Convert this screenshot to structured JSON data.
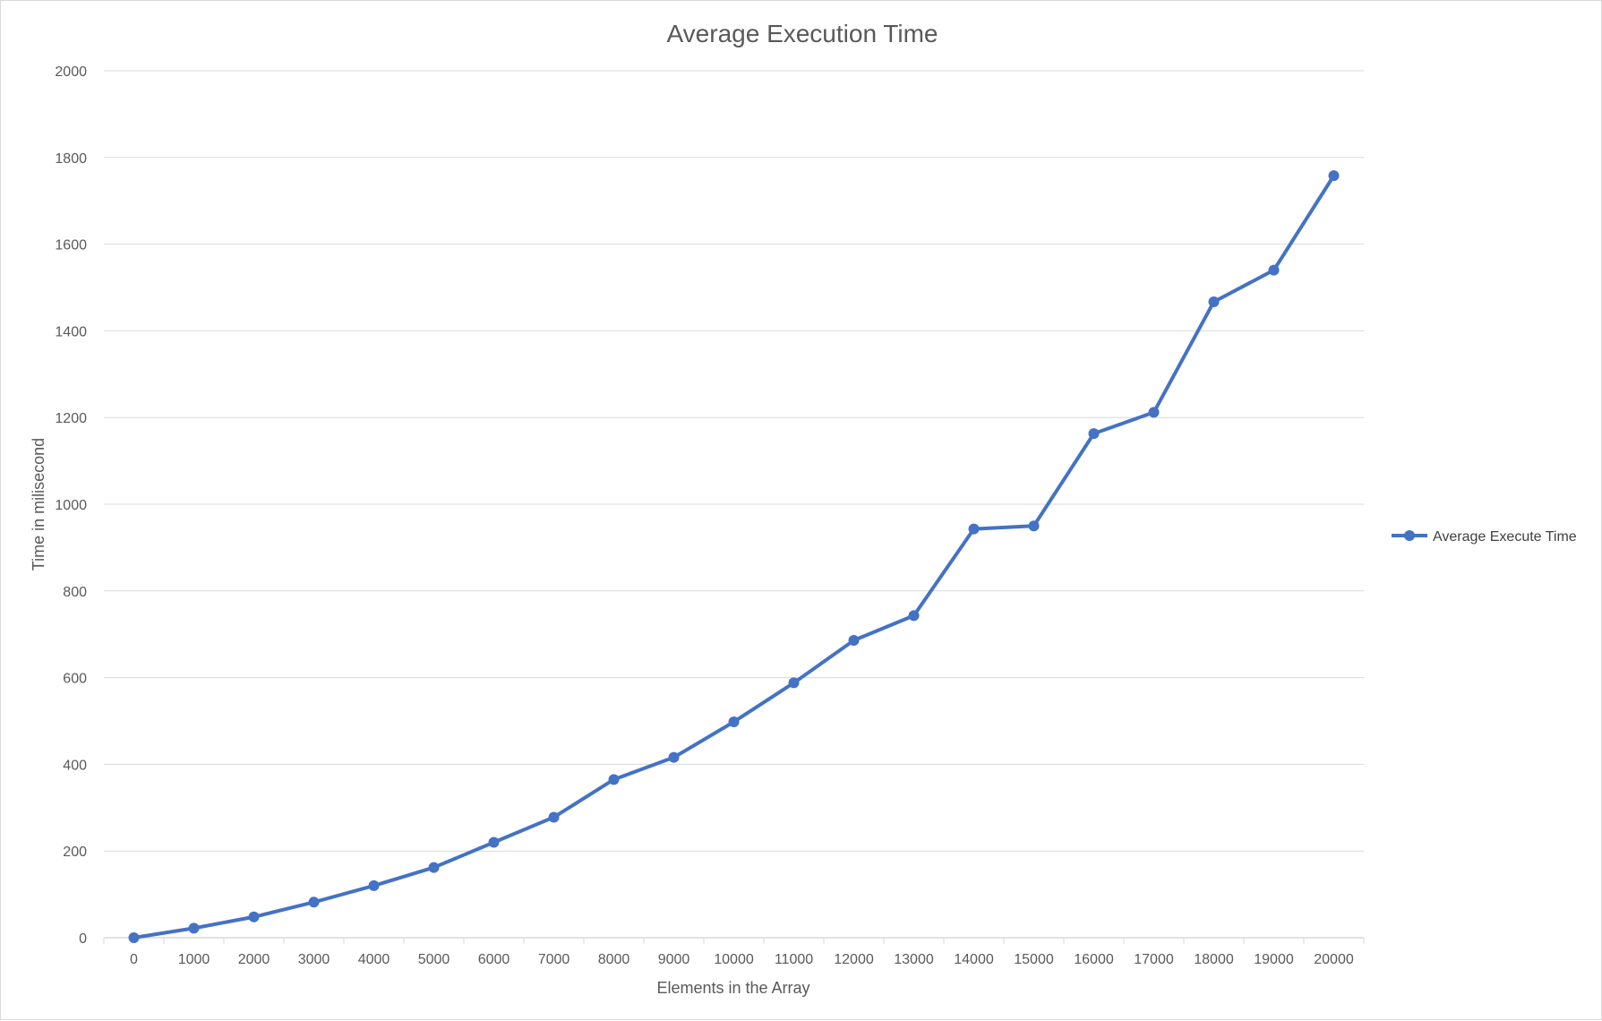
{
  "chart_data": {
    "type": "line",
    "title": "Average Execution Time",
    "xlabel": "Elements in the Array",
    "ylabel": "Time in milisecond",
    "categories": [
      "0",
      "1000",
      "2000",
      "3000",
      "4000",
      "5000",
      "6000",
      "7000",
      "8000",
      "9000",
      "10000",
      "11000",
      "12000",
      "13000",
      "14000",
      "15000",
      "16000",
      "17000",
      "18000",
      "19000",
      "20000"
    ],
    "series": [
      {
        "name": "Average Execute Time",
        "values": [
          0,
          22,
          48,
          82,
          120,
          162,
          220,
          278,
          365,
          416,
          498,
          588,
          686,
          743,
          943,
          950,
          1163,
          1212,
          1467,
          1540,
          1758
        ]
      }
    ],
    "ylim": [
      0,
      2000
    ],
    "yticks": [
      0,
      200,
      400,
      600,
      800,
      1000,
      1200,
      1400,
      1600,
      1800,
      2000
    ],
    "grid": true,
    "legend_position": "right",
    "colors": {
      "series": "#4472c4",
      "grid": "#d9d9d9",
      "text": "#595959"
    }
  }
}
